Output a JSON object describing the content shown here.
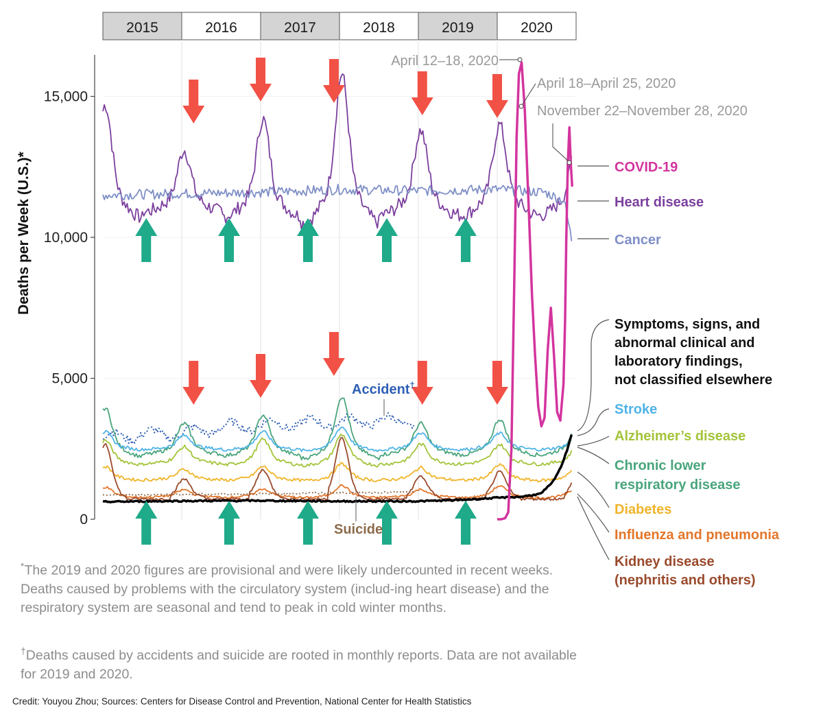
{
  "chart_data": {
    "type": "line",
    "ylabel": "Deaths per Week (U.S.)*",
    "ylim": [
      0,
      16500
    ],
    "yticks": [
      {
        "value": 0,
        "label": "0"
      },
      {
        "value": 5000,
        "label": "5,000"
      },
      {
        "value": 10000,
        "label": "10,000"
      },
      {
        "value": 15000,
        "label": "15,000"
      }
    ],
    "xlim": [
      2015.0,
      2020.95
    ],
    "year_tabs": [
      {
        "label": "2015",
        "start": 2015,
        "shaded": true
      },
      {
        "label": "2016",
        "start": 2016,
        "shaded": false
      },
      {
        "label": "2017",
        "start": 2017,
        "shaded": true
      },
      {
        "label": "2018",
        "start": 2018,
        "shaded": false
      },
      {
        "label": "2019",
        "start": 2019,
        "shaded": true
      },
      {
        "label": "2020",
        "start": 2020,
        "shaded": false
      }
    ],
    "series": [
      {
        "name": "Heart disease",
        "color": "#7b3f9e",
        "kind": "seasonal",
        "base": 11200,
        "amp": [
          3500,
          1900,
          3000,
          4600,
          2600,
          2800
        ],
        "noise": 250
      },
      {
        "name": "Cancer",
        "color": "#7f8fc6",
        "kind": "flat",
        "x": [
          2015.0,
          2016.0,
          2017.0,
          2018.0,
          2019.0,
          2020.0,
          2020.6,
          2020.85,
          2020.95
        ],
        "y": [
          11500,
          11550,
          11600,
          11700,
          11650,
          11700,
          11600,
          11300,
          9800
        ],
        "noise": 180
      },
      {
        "name": "Accident†",
        "color": "#2e5fb5",
        "kind": "accident",
        "x": [
          2015.0,
          2015.5,
          2016.0,
          2016.5,
          2017.0,
          2017.5,
          2018.0,
          2018.5,
          2018.95
        ],
        "y": [
          2900,
          3000,
          3050,
          3250,
          3350,
          3400,
          3450,
          3500,
          3450
        ],
        "noise": 140
      },
      {
        "name": "Chronic lower respiratory disease",
        "color": "#4aa57c",
        "kind": "seasonal",
        "base": 2450,
        "amp": [
          1500,
          950,
          1250,
          1900,
          950,
          1100
        ],
        "noise": 70
      },
      {
        "name": "Stroke",
        "color": "#4fb3e6",
        "kind": "seasonal",
        "base": 2550,
        "amp": [
          550,
          420,
          560,
          720,
          520,
          500
        ],
        "noise": 55
      },
      {
        "name": "Alzheimer’s disease",
        "color": "#a3c43a",
        "kind": "seasonal",
        "base": 2050,
        "amp": [
          750,
          520,
          780,
          950,
          620,
          600
        ],
        "noise": 60
      },
      {
        "name": "Diabetes",
        "color": "#f0b429",
        "kind": "seasonal",
        "base": 1450,
        "amp": [
          420,
          320,
          420,
          520,
          380,
          480
        ],
        "noise": 55
      },
      {
        "name": "Influenza and pneumonia",
        "color": "#e3762a",
        "kind": "seasonal",
        "base": 820,
        "amp": [
          320,
          230,
          260,
          380,
          240,
          360
        ],
        "noise": 40
      },
      {
        "name": "Kidney disease (nephritis and others)",
        "color": "#9a4a2c",
        "kind": "flu",
        "base": 780,
        "amp": [
          1900,
          650,
          980,
          2100,
          750,
          900
        ],
        "noise": 45
      },
      {
        "name": "Suicide",
        "color": "#8c6a4a",
        "kind": "suicide",
        "x": [
          2015.0,
          2016.0,
          2017.0,
          2018.0,
          2018.95
        ],
        "y": [
          860,
          880,
          900,
          940,
          960
        ],
        "noise": 30
      },
      {
        "name": "Symptoms, signs, and abnormal clinical and laboratory findings, not classified elsewhere",
        "color": "#000000",
        "kind": "symptoms",
        "x": [
          2015.0,
          2016.0,
          2017.0,
          2018.0,
          2019.0,
          2019.5,
          2020.0,
          2020.3,
          2020.55,
          2020.7,
          2020.8,
          2020.88,
          2020.95
        ],
        "y": [
          620,
          650,
          660,
          640,
          640,
          680,
          760,
          800,
          900,
          1300,
          1800,
          2400,
          3100
        ],
        "noise": 25
      },
      {
        "name": "COVID-19",
        "color": "#d3349e",
        "kind": "covid",
        "x": [
          2020.0,
          2020.05,
          2020.1,
          2020.14,
          2020.18,
          2020.215,
          2020.245,
          2020.275,
          2020.31,
          2020.35,
          2020.4,
          2020.44,
          2020.48,
          2020.52,
          2020.56,
          2020.6,
          2020.64,
          2020.68,
          2020.72,
          2020.76,
          2020.8,
          2020.84,
          2020.86,
          2020.875,
          2020.895,
          2020.915,
          2020.935,
          2020.95
        ],
        "y": [
          0,
          0,
          40,
          250,
          2500,
          8200,
          13500,
          15800,
          16200,
          14500,
          11000,
          8000,
          5800,
          4000,
          3300,
          3600,
          6000,
          7500,
          5800,
          3800,
          3500,
          4800,
          7000,
          9800,
          12600,
          13900,
          12500,
          11800
        ]
      }
    ],
    "labels": [
      {
        "series": "COVID-19",
        "text": "COVID-19",
        "color": "#d3349e",
        "bold": true
      },
      {
        "series": "Heart disease",
        "text": "Heart disease",
        "color": "#7b3f9e",
        "bold": true
      },
      {
        "series": "Cancer",
        "text": "Cancer",
        "color": "#7f8fc6",
        "bold": true
      },
      {
        "series": "Symptoms",
        "lines": [
          "Symptoms, signs, and",
          "abnormal clinical and",
          "laboratory findings,",
          "not classified elsewhere"
        ],
        "color": "#111111",
        "bold": true
      },
      {
        "series": "Stroke",
        "text": "Stroke",
        "color": "#4fb3e6",
        "bold": true
      },
      {
        "series": "Alzheimer",
        "text": "Alzheimer’s disease",
        "color": "#a3c43a",
        "bold": true
      },
      {
        "series": "CLRD",
        "lines": [
          "Chronic lower",
          "respiratory disease"
        ],
        "color": "#4aa57c",
        "bold": true
      },
      {
        "series": "Diabetes",
        "text": "Diabetes",
        "color": "#f0b429",
        "bold": true
      },
      {
        "series": "Influenza",
        "text": "Influenza and pneumonia",
        "color": "#e3762a",
        "bold": true
      },
      {
        "series": "Kidney",
        "lines": [
          "Kidney disease",
          "(nephritis and others)"
        ],
        "color": "#9a4a2c",
        "bold": true
      }
    ],
    "inline_labels": [
      {
        "text": "Accident",
        "sup": "†",
        "color": "#2e5fb5"
      },
      {
        "text": "Suicide",
        "color": "#8c6a4a"
      }
    ],
    "annotations": [
      {
        "text": "April 12–18, 2020",
        "x": 2020.275,
        "y": 16200
      },
      {
        "text": "April 18–April 25, 2020",
        "x": 2020.31,
        "y": 14800
      },
      {
        "text": "November 22–November 28, 2020",
        "x": 2020.91,
        "y": 12500
      }
    ],
    "red_arrows_upper": [
      2016.15,
      2017.0,
      2017.93,
      2019.05,
      2020.0
    ],
    "red_arrows_lower": [
      2016.15,
      2017.0,
      2017.93,
      2019.05,
      2020.0
    ],
    "green_arrows": [
      2015.55,
      2016.6,
      2017.6,
      2018.6,
      2019.6
    ],
    "grid": true,
    "legend": "right"
  },
  "notes": {
    "note1_mark": "*",
    "note1": "The 2019 and 2020 figures are provisional and were likely undercounted in recent weeks. Deaths caused by problems with the circulatory system (includ-ing heart disease) and the respiratory system are seasonal and tend to peak in cold winter months.",
    "note2_mark": "†",
    "note2": "Deaths caused by accidents and suicide are rooted in monthly reports. Data are not available for 2019 and 2020.",
    "credit": "Credit: Youyou Zhou; Sources: Centers for Disease Control and Prevention, National Center for Health Statistics"
  },
  "colors": {
    "red_arrow": "#f25146",
    "green_arrow": "#1faa8a",
    "tab_shaded": "#d4d4d4",
    "grid": "#e6e6e6",
    "annotation": "#999999"
  }
}
